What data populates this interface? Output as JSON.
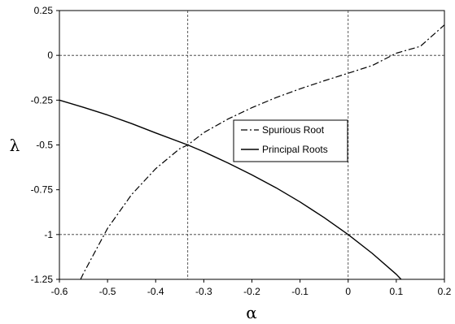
{
  "chart_data": {
    "type": "line",
    "title": "",
    "xlabel": "α",
    "ylabel": "λ",
    "xlim": [
      -0.6,
      0.2
    ],
    "ylim": [
      -1.25,
      0.25
    ],
    "x_ticks": [
      -0.6,
      -0.5,
      -0.4,
      -0.3,
      -0.2,
      -0.1,
      0,
      0.1,
      0.2
    ],
    "x_tick_labels": [
      "-0.6",
      "-0.5",
      "-0.4",
      "-0.3",
      "-0.2",
      "-0.1",
      "0",
      "0.1",
      "0.2"
    ],
    "y_ticks": [
      0.25,
      0,
      -0.25,
      -0.5,
      -0.75,
      -1,
      -1.25
    ],
    "y_tick_labels": [
      "0.25",
      "0",
      "-0.25",
      "-0.5",
      "-0.75",
      "-1",
      "-1.25"
    ],
    "grid": "dashed reference lines at x=-1/3, x=0, y=0, y=-1",
    "reference_lines": {
      "x": [
        -0.3333,
        0
      ],
      "y": [
        0,
        -1
      ]
    },
    "legend_position": "center-right",
    "series": [
      {
        "name": "Spurious Root",
        "style": "dash-dot",
        "color": "#000000",
        "x": [
          -0.556,
          -0.55,
          -0.5,
          -0.45,
          -0.4,
          -0.35,
          -0.3333,
          -0.3,
          -0.25,
          -0.2,
          -0.15,
          -0.1,
          -0.05,
          0,
          0.05,
          0.1,
          0.15,
          0.2
        ],
        "y": [
          -1.25,
          -1.216,
          -0.966,
          -0.777,
          -0.633,
          -0.521,
          -0.5,
          -0.431,
          -0.356,
          -0.292,
          -0.236,
          -0.187,
          -0.142,
          -0.1,
          -0.057,
          0.012,
          0.05,
          0.17
        ]
      },
      {
        "name": "Principal Roots",
        "style": "solid",
        "color": "#000000",
        "x": [
          -0.6,
          -0.55,
          -0.5,
          -0.45,
          -0.4,
          -0.3333,
          -0.3,
          -0.25,
          -0.2,
          -0.15,
          -0.1,
          -0.05,
          0,
          0.05,
          0.1,
          0.11
        ],
        "y": [
          -0.25,
          -0.29,
          -0.333,
          -0.381,
          -0.433,
          -0.5,
          -0.538,
          -0.6,
          -0.667,
          -0.739,
          -0.818,
          -0.905,
          -1,
          -1.105,
          -1.222,
          -1.25
        ]
      }
    ]
  }
}
